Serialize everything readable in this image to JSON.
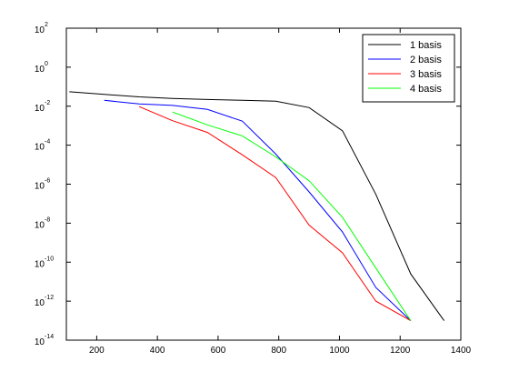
{
  "chart_data": {
    "type": "line",
    "title": "",
    "xlabel": "",
    "ylabel": "",
    "xlim": [
      100,
      1400
    ],
    "ylim_log10": [
      -14,
      2
    ],
    "y_scale": "log",
    "grid": false,
    "legend_position": "top-right",
    "x_ticks": [
      200,
      400,
      600,
      800,
      1000,
      1200,
      1400
    ],
    "y_tick_exponents": [
      2,
      0,
      -2,
      -4,
      -6,
      -8,
      -10,
      -12,
      -14
    ],
    "y_tick_base": "10",
    "series": [
      {
        "name": "1 basis",
        "color": "#000000",
        "x": [
          110,
          225,
          340,
          450,
          565,
          680,
          790,
          900,
          1010,
          1120,
          1235,
          1345
        ],
        "y": [
          0.055,
          0.04,
          0.03,
          0.025,
          0.022,
          0.02,
          0.018,
          0.0085,
          0.00055,
          3e-07,
          2.5e-11,
          1e-13
        ]
      },
      {
        "name": "2 basis",
        "color": "#0000ff",
        "x": [
          225,
          340,
          450,
          565,
          680,
          790,
          900,
          1010,
          1120,
          1235
        ],
        "y": [
          0.02,
          0.013,
          0.011,
          0.0068,
          0.0017,
          3.5e-05,
          4e-07,
          3.5e-09,
          5e-12,
          1e-13
        ]
      },
      {
        "name": "3 basis",
        "color": "#ff0000",
        "x": [
          340,
          450,
          565,
          680,
          790,
          900,
          1010,
          1120,
          1235
        ],
        "y": [
          0.0095,
          0.0018,
          0.00045,
          3.2e-05,
          2.2e-06,
          8e-09,
          3e-10,
          1e-12,
          1e-13
        ]
      },
      {
        "name": "4 basis",
        "color": "#00ff00",
        "x": [
          450,
          565,
          680,
          790,
          900,
          1010,
          1120,
          1235
        ],
        "y": [
          0.005,
          0.0011,
          0.0003,
          2.5e-05,
          1.5e-06,
          2e-08,
          5e-11,
          1e-13
        ]
      }
    ]
  }
}
